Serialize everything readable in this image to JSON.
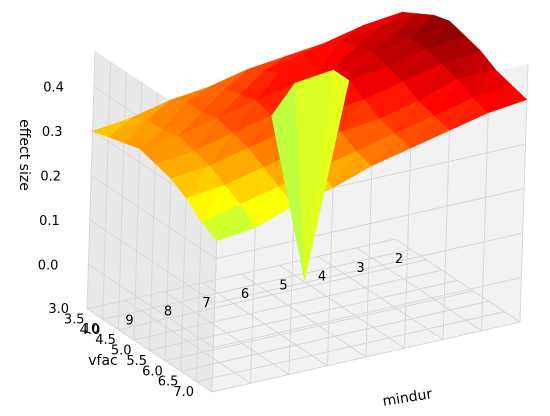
{
  "chart_data": {
    "type": "surface3d",
    "title": "",
    "xlabel": "mindur",
    "ylabel": "vfac",
    "zlabel": "effect size",
    "colormap": "jet",
    "grid": true,
    "x_ticks": [
      10,
      9,
      8,
      7,
      6,
      5,
      4,
      3,
      2
    ],
    "y_ticks": [
      "3.0",
      "3.5",
      "4.0",
      "4.5",
      "5.0",
      "5.5",
      "6.0",
      "6.5",
      "7.0"
    ],
    "z_ticks": [
      "0.0",
      "0.1",
      "0.2",
      "0.3",
      "0.4"
    ],
    "xlim": [
      2,
      10
    ],
    "ylim": [
      3.0,
      7.0
    ],
    "zlim": [
      -0.1,
      0.48
    ],
    "x": [
      2,
      3,
      4,
      5,
      6,
      7,
      8,
      9,
      10
    ],
    "y": [
      3.0,
      3.5,
      4.0,
      4.5,
      5.0,
      5.5,
      6.0,
      6.5,
      7.0
    ],
    "z": [
      [
        0.41,
        0.4,
        0.38,
        0.37,
        0.36,
        0.34,
        0.33,
        0.31,
        0.3
      ],
      [
        0.43,
        0.42,
        0.41,
        0.4,
        0.38,
        0.36,
        0.35,
        0.33,
        0.31
      ],
      [
        0.45,
        0.43,
        0.42,
        0.38,
        0.4,
        0.37,
        0.35,
        0.33,
        0.32
      ],
      [
        0.46,
        0.44,
        0.43,
        0.41,
        0.4,
        0.38,
        0.36,
        0.34,
        0.33
      ],
      [
        0.45,
        0.44,
        0.42,
        0.41,
        -0.02,
        0.37,
        0.35,
        0.33,
        0.32
      ],
      [
        0.44,
        0.43,
        0.41,
        0.39,
        0.38,
        0.36,
        0.34,
        0.32,
        0.31
      ],
      [
        0.42,
        0.42,
        0.39,
        0.37,
        0.36,
        0.34,
        0.32,
        0.3,
        0.29
      ],
      [
        0.41,
        0.4,
        0.38,
        0.36,
        0.34,
        0.32,
        0.3,
        0.28,
        0.26
      ],
      [
        0.4,
        0.39,
        0.37,
        0.35,
        0.33,
        0.3,
        0.28,
        0.25,
        0.24
      ]
    ]
  }
}
